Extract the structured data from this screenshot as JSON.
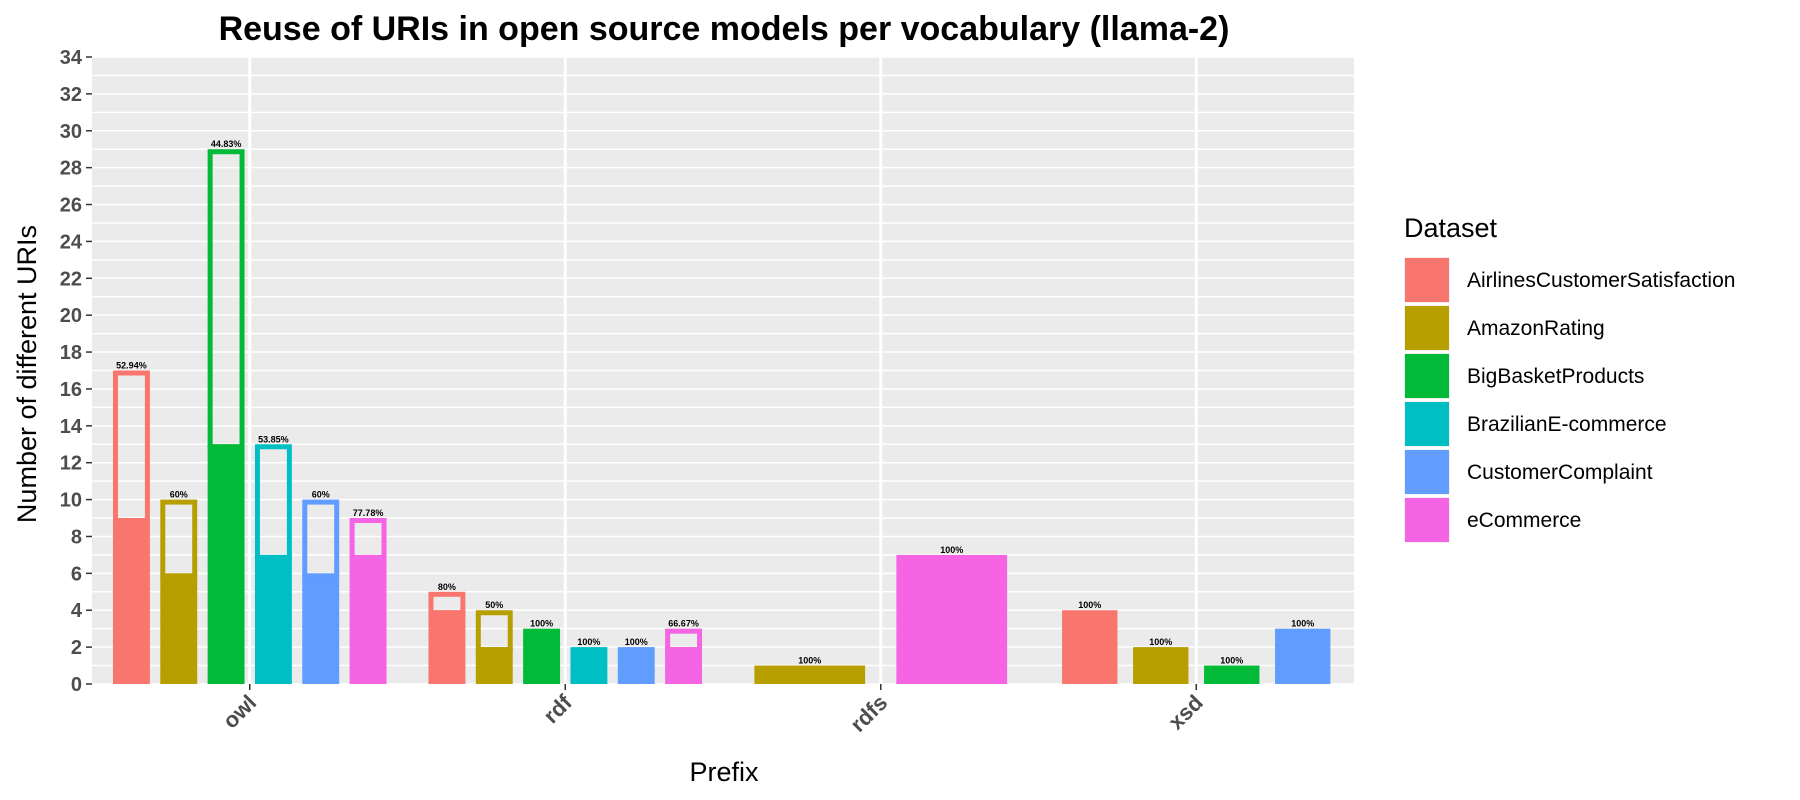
{
  "chart_data": {
    "type": "bar",
    "title": "Reuse of URIs in open source models per vocabulary (llama-2)",
    "xlabel": "Prefix",
    "ylabel": "Number of different URIs",
    "ylim": [
      0,
      34
    ],
    "yticks": [
      0,
      2,
      4,
      6,
      8,
      10,
      12,
      14,
      16,
      18,
      20,
      22,
      24,
      26,
      28,
      30,
      32,
      34
    ],
    "grid": true,
    "legend": {
      "title": "Dataset",
      "position": "right"
    },
    "categories": [
      "owl",
      "rdf",
      "rdfs",
      "xsd"
    ],
    "series": [
      {
        "name": "AirlinesCustomerSatisfaction",
        "color": "#F8766D",
        "values": [
          17,
          5,
          null,
          4
        ],
        "reused": [
          9,
          4,
          null,
          4
        ],
        "labels": [
          "52.94%",
          "80%",
          "",
          "100%"
        ]
      },
      {
        "name": "AmazonRating",
        "color": "#B79F00",
        "values": [
          10,
          4,
          1,
          2
        ],
        "reused": [
          6,
          2,
          1,
          2
        ],
        "labels": [
          "60%",
          "50%",
          "100%",
          "100%"
        ]
      },
      {
        "name": "BigBasketProducts",
        "color": "#00BA38",
        "values": [
          29,
          3,
          null,
          1
        ],
        "reused": [
          13,
          3,
          null,
          1
        ],
        "labels": [
          "44.83%",
          "100%",
          "",
          "100%"
        ]
      },
      {
        "name": "BrazilianE-commerce",
        "color": "#00BFC4",
        "values": [
          13,
          2,
          null,
          null
        ],
        "reused": [
          7,
          2,
          null,
          null
        ],
        "labels": [
          "53.85%",
          "100%",
          "",
          ""
        ]
      },
      {
        "name": "CustomerComplaint",
        "color": "#619CFF",
        "values": [
          10,
          2,
          null,
          3
        ],
        "reused": [
          6,
          2,
          null,
          3
        ],
        "labels": [
          "60%",
          "100%",
          "",
          "100%"
        ]
      },
      {
        "name": "eCommerce",
        "color": "#F564E3",
        "values": [
          9,
          3,
          7,
          null
        ],
        "reused": [
          7,
          2,
          7,
          null
        ],
        "labels": [
          "77.78%",
          "66.67%",
          "100%",
          ""
        ]
      }
    ]
  }
}
